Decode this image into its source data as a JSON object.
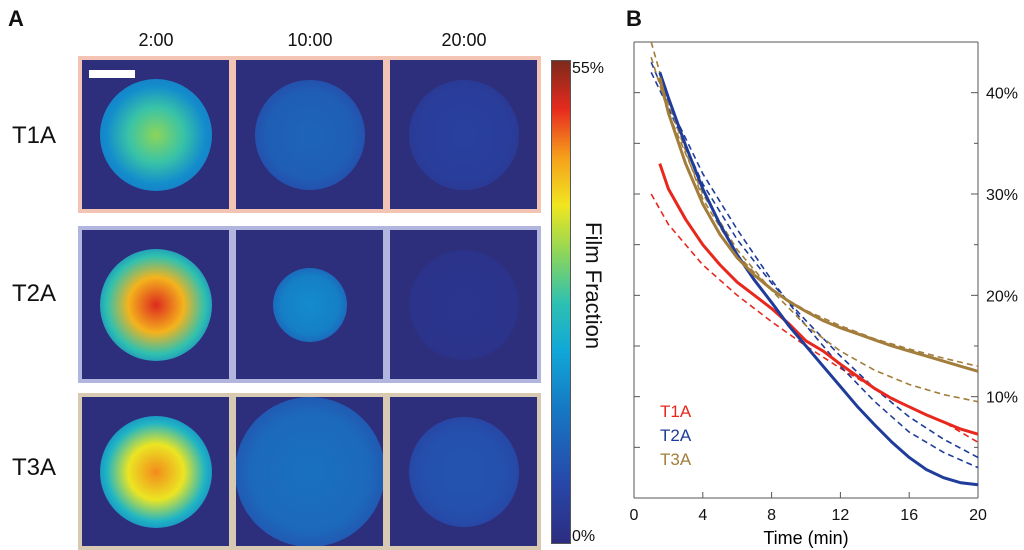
{
  "panel_a": {
    "letter": "A",
    "columns": [
      "2:00",
      "10:00",
      "20:00"
    ],
    "rows": [
      {
        "label": "T1A",
        "border": "#f3c4b4",
        "levels": [
          0.33,
          0.12,
          0.05
        ]
      },
      {
        "label": "T2A",
        "border": "#b2b5de",
        "levels": [
          0.5,
          0.18,
          0.02
        ]
      },
      {
        "label": "T3A",
        "border": "#d8c9b3",
        "levels": [
          0.45,
          0.14,
          0.09
        ]
      }
    ],
    "colorbar": {
      "title": "Film Fraction",
      "max_label": "55%",
      "min_label": "0%",
      "max_value": 0.55,
      "min_value": 0
    }
  },
  "panel_b": {
    "letter": "B"
  },
  "chart_data": {
    "type": "line",
    "xlabel": "Time (min)",
    "ylabel": "",
    "xlim": [
      0,
      20
    ],
    "ylim": [
      0,
      45
    ],
    "xticks": [
      0,
      4,
      8,
      12,
      16,
      20
    ],
    "xtick_labels": [
      "0",
      "4",
      "8",
      "12",
      "16",
      "20"
    ],
    "yticks_right": [
      10,
      20,
      30,
      40
    ],
    "ytick_labels_right": [
      "10%",
      "20%",
      "30%",
      "40%"
    ],
    "legend_position": "bottom-left",
    "series": [
      {
        "name": "T1A",
        "color": "#e8271d",
        "measured": {
          "x": [
            1.5,
            2,
            3,
            4,
            5,
            6,
            7,
            8,
            9,
            10,
            11,
            12,
            13,
            14,
            15,
            16,
            17,
            18,
            19,
            20
          ],
          "y": [
            33,
            30.5,
            27.5,
            25,
            23,
            21.3,
            20,
            18.7,
            17.2,
            15.5,
            14.5,
            13.2,
            12,
            10.8,
            9.8,
            9,
            8.2,
            7.5,
            6.8,
            6.3
          ]
        },
        "fit": {
          "x": [
            1,
            2,
            4,
            6,
            8,
            10,
            12,
            14,
            16,
            18,
            20
          ],
          "y": [
            30,
            27,
            23,
            20,
            17.4,
            15,
            12.8,
            10.8,
            9,
            7.5,
            5.5
          ]
        }
      },
      {
        "name": "T2A",
        "color": "#1f3c9a",
        "measured": {
          "x": [
            1.5,
            2,
            3,
            4,
            5,
            6,
            7,
            8,
            9,
            10,
            11,
            12,
            13,
            14,
            15,
            16,
            17,
            18,
            19,
            20
          ],
          "y": [
            42,
            39.5,
            34.8,
            30.5,
            27,
            24,
            21.5,
            19.3,
            17,
            15,
            13,
            11,
            9,
            7.2,
            5.5,
            4,
            2.8,
            2,
            1.5,
            1.3
          ]
        },
        "fit_a": {
          "x": [
            1,
            2,
            4,
            6,
            8,
            10,
            12,
            14,
            16,
            18,
            20
          ],
          "y": [
            43,
            39,
            32,
            26.5,
            21.5,
            17,
            13,
            9.5,
            6.5,
            4.5,
            3
          ]
        },
        "fit_b": {
          "x": [
            1,
            2,
            4,
            6,
            8,
            10,
            12,
            14,
            16,
            18,
            20
          ],
          "y": [
            42,
            38.5,
            31,
            25.5,
            21.2,
            17.5,
            14,
            10.8,
            8,
            5.8,
            4
          ]
        }
      },
      {
        "name": "T3A",
        "color": "#a27d3b",
        "measured": {
          "x": [
            1.5,
            2,
            3,
            4,
            5,
            6,
            7,
            8,
            9,
            10,
            11,
            12,
            13,
            14,
            15,
            16,
            17,
            18,
            19,
            20
          ],
          "y": [
            41.5,
            38,
            33,
            29,
            26,
            23.7,
            22,
            20.6,
            19.4,
            18.4,
            17.5,
            16.8,
            16.2,
            15.6,
            15,
            14.5,
            14,
            13.5,
            13,
            12.5
          ]
        },
        "fit_a": {
          "x": [
            1,
            2,
            4,
            6,
            8,
            10,
            12,
            14,
            16,
            18,
            20
          ],
          "y": [
            45,
            39,
            29.5,
            24,
            20.5,
            18.5,
            17,
            15.7,
            14.7,
            13.8,
            13
          ]
        },
        "fit_b": {
          "x": [
            1,
            2,
            4,
            6,
            8,
            10,
            12,
            14,
            16,
            18,
            20
          ],
          "y": [
            43.5,
            38,
            30,
            24.5,
            20.5,
            17,
            14.5,
            12.6,
            11.2,
            10.2,
            9.5
          ]
        }
      }
    ]
  }
}
